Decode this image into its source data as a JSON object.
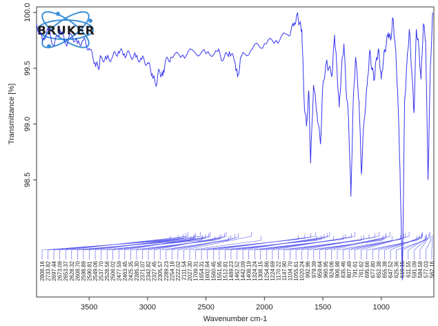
{
  "chart_data": {
    "type": "line",
    "xlabel": "Wavenumber cm-1",
    "ylabel": "Transmittance [%]",
    "xlim": [
      3950,
      550
    ],
    "ylim": [
      97.45,
      100.05
    ],
    "x_ticks": [
      "3500",
      "3000",
      "2500",
      "2000",
      "1500",
      "1000"
    ],
    "y_ticks": [
      "100.0",
      "99.5",
      "99.0",
      "98.5"
    ],
    "grid": false,
    "line_color": "#3333ee",
    "series": [
      {
        "points": [
          [
            3950,
            99.9
          ],
          [
            3900,
            99.75
          ],
          [
            3850,
            99.85
          ],
          [
            3800,
            99.7
          ],
          [
            3750,
            99.85
          ],
          [
            3700,
            99.72
          ],
          [
            3650,
            99.8
          ],
          [
            3600,
            99.72
          ],
          [
            3550,
            99.75
          ],
          [
            3500,
            99.68
          ],
          [
            3450,
            99.55
          ],
          [
            3420,
            99.5
          ],
          [
            3400,
            99.6
          ],
          [
            3350,
            99.58
          ],
          [
            3300,
            99.6
          ],
          [
            3250,
            99.65
          ],
          [
            3200,
            99.63
          ],
          [
            3150,
            99.62
          ],
          [
            3100,
            99.6
          ],
          [
            3050,
            99.58
          ],
          [
            3000,
            99.55
          ],
          [
            2960,
            99.45
          ],
          [
            2930,
            99.35
          ],
          [
            2900,
            99.48
          ],
          [
            2870,
            99.43
          ],
          [
            2850,
            99.55
          ],
          [
            2800,
            99.6
          ],
          [
            2700,
            99.62
          ],
          [
            2600,
            99.65
          ],
          [
            2500,
            99.63
          ],
          [
            2400,
            99.65
          ],
          [
            2350,
            99.58
          ],
          [
            2300,
            99.65
          ],
          [
            2250,
            99.55
          ],
          [
            2230,
            99.42
          ],
          [
            2200,
            99.6
          ],
          [
            2100,
            99.68
          ],
          [
            2000,
            99.72
          ],
          [
            1900,
            99.75
          ],
          [
            1800,
            99.8
          ],
          [
            1750,
            99.88
          ],
          [
            1720,
            99.98
          ],
          [
            1700,
            99.9
          ],
          [
            1680,
            99.85
          ],
          [
            1660,
            99.2
          ],
          [
            1640,
            98.98
          ],
          [
            1620,
            99.3
          ],
          [
            1605,
            98.65
          ],
          [
            1580,
            99.35
          ],
          [
            1550,
            99.1
          ],
          [
            1520,
            98.82
          ],
          [
            1500,
            99.35
          ],
          [
            1470,
            99.55
          ],
          [
            1450,
            99.5
          ],
          [
            1420,
            99.45
          ],
          [
            1400,
            99.8
          ],
          [
            1380,
            99.5
          ],
          [
            1360,
            99.15
          ],
          [
            1340,
            99.5
          ],
          [
            1320,
            99.72
          ],
          [
            1300,
            99.3
          ],
          [
            1280,
            99.05
          ],
          [
            1260,
            98.35
          ],
          [
            1240,
            99.2
          ],
          [
            1220,
            99.6
          ],
          [
            1190,
            99.2
          ],
          [
            1170,
            98.55
          ],
          [
            1150,
            99.0
          ],
          [
            1120,
            99.35
          ],
          [
            1100,
            99.65
          ],
          [
            1080,
            99.5
          ],
          [
            1060,
            99.4
          ],
          [
            1040,
            99.6
          ],
          [
            1020,
            99.65
          ],
          [
            1000,
            99.4
          ],
          [
            980,
            99.6
          ],
          [
            960,
            99.7
          ],
          [
            940,
            99.82
          ],
          [
            920,
            99.75
          ],
          [
            900,
            99.95
          ],
          [
            880,
            99.7
          ],
          [
            860,
            99.3
          ],
          [
            840,
            98.6
          ],
          [
            820,
            97.6
          ],
          [
            800,
            99.2
          ],
          [
            780,
            99.55
          ],
          [
            760,
            99.85
          ],
          [
            740,
            99.5
          ],
          [
            720,
            99.1
          ],
          [
            700,
            99.85
          ],
          [
            680,
            99.7
          ],
          [
            660,
            99.4
          ],
          [
            640,
            99.9
          ],
          [
            620,
            99.75
          ],
          [
            600,
            98.5
          ],
          [
            580,
            99.5
          ],
          [
            560,
            100.0
          ]
        ]
      }
    ],
    "peak_labels": [
      "2808.16",
      "2733.82",
      "2697.44",
      "2673.09",
      "2653.37",
      "2628.32",
      "2608.70",
      "2598.89",
      "2590.81",
      "2549.06",
      "2537.70",
      "2528.56",
      "2506.02",
      "2477.59",
      "2463.45",
      "2425.35",
      "2385.30",
      "2371.07",
      "2342.82",
      "2327.45",
      "2305.57",
      "2289.23",
      "2254.18",
      "2222.02",
      "2111.54",
      "2027.30",
      "1709.31",
      "1654.31",
      "1602.64",
      "1560.45",
      "1551.95",
      "1512.81",
      "1489.23",
      "1462.52",
      "1442.09",
      "1408.19",
      "1324.24",
      "1308.15",
      "1254.86",
      "1224.69",
      "1170.22",
      "1147.90",
      "1104.70",
      "1055.61",
      "1020.24",
      "992.96",
      "979.39",
      "959.64",
      "960.95",
      "924.06",
      "906.98",
      "835.46",
      "807.49",
      "791.61",
      "761.62",
      "695.66",
      "677.80",
      "652.38",
      "655.38",
      "647.52",
      "625.36",
      "619.15",
      "611.55",
      "591.09",
      "584.58",
      "577.03",
      "562.16"
    ]
  },
  "logo": {
    "text": "BRUKER",
    "colors": {
      "text": "#1a1a1a",
      "orbit": "#3a8ed6"
    }
  }
}
